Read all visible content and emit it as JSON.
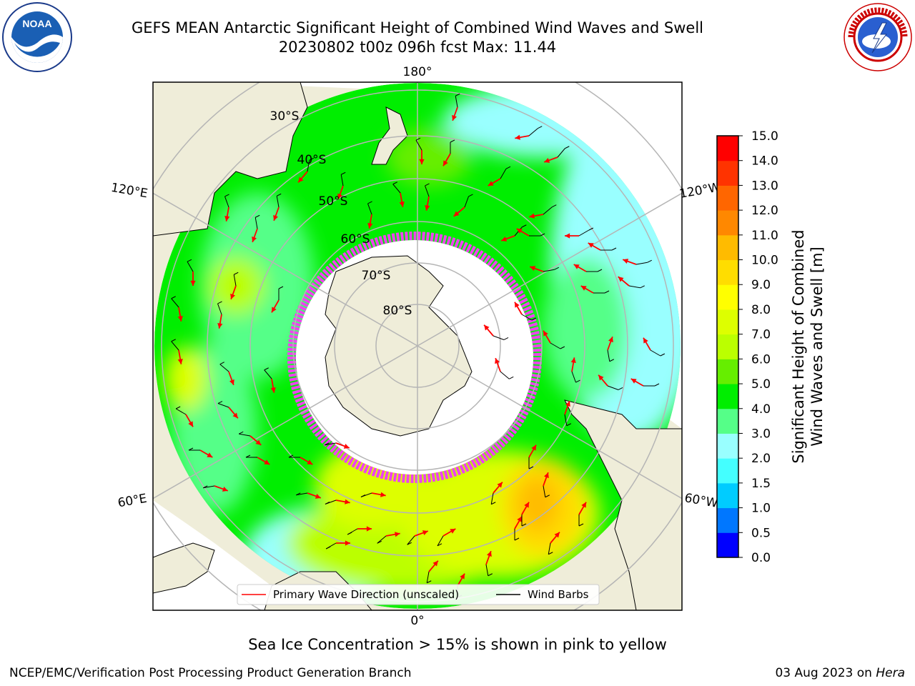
{
  "header": {
    "title_line1": "GEFS MEAN Antarctic Significant Height of Combined Wind Waves and Swell",
    "title_line2": "20230802 t00z 096h fcst   Max: 11.44"
  },
  "logos": {
    "left": {
      "name": "noaa-logo",
      "text": "NOAA",
      "ring_text": "NATIONAL OCEANIC AND ATMOSPHERIC ADMINISTRATION · U.S. DEPARTMENT OF COMMERCE"
    },
    "right": {
      "name": "nws-logo",
      "ring_text": "NATIONAL WEATHER SERVICE"
    }
  },
  "map": {
    "projection": "south-polar-stereographic",
    "longitude_labels": [
      "180°",
      "120°E",
      "120°W",
      "60°E",
      "60°W",
      "0°"
    ],
    "latitude_labels": [
      "30°S",
      "40°S",
      "50°S",
      "60°S",
      "70°S",
      "80°S"
    ],
    "colors": {
      "land": "#efedd9",
      "ice": "#ffffff",
      "grid": "#b5b5b5",
      "wave_arrow": "#ff0000",
      "wind_barb": "#000000",
      "ice_edge": "#ee44ee"
    },
    "wave_field_regions": [
      {
        "region": "southern Pacific / Ross Sea sector",
        "level": "2.0-4.0 m"
      },
      {
        "region": "central Pacific belt",
        "level": "4.0-5.0 m"
      },
      {
        "region": "southern Indian Ocean",
        "level": "6.0-9.0 m"
      },
      {
        "region": "South Atlantic maximum",
        "level": "10.0-11.0 m"
      }
    ]
  },
  "legend": {
    "items": [
      {
        "label": "Primary Wave Direction (unscaled)",
        "color": "#ff0000"
      },
      {
        "label": "Wind Barbs",
        "color": "#000000"
      }
    ]
  },
  "colorbar": {
    "label_line1": "Significant Height of Combined",
    "label_line2": "Wind Waves and Swell [m]",
    "ticks": [
      "0.0",
      "0.5",
      "1.0",
      "1.5",
      "2.0",
      "3.0",
      "4.0",
      "5.0",
      "6.0",
      "7.0",
      "8.0",
      "9.0",
      "10.0",
      "11.0",
      "12.0",
      "13.0",
      "14.0",
      "15.0"
    ],
    "colors": [
      "#0000ff",
      "#0077ff",
      "#00ccff",
      "#44ffff",
      "#99ffff",
      "#55ff88",
      "#00ee00",
      "#66ee00",
      "#bbff00",
      "#ddff00",
      "#ffff00",
      "#ffdd00",
      "#ffbb00",
      "#ff8800",
      "#ff6600",
      "#ff3300",
      "#ff0000"
    ]
  },
  "footer": {
    "caption": "Sea Ice Concentration > 15% is shown in pink to yellow",
    "left": "NCEP/EMC/Verification Post Processing Product Generation Branch",
    "right_date": "03 Aug 2023 on ",
    "right_host": "Hera"
  }
}
